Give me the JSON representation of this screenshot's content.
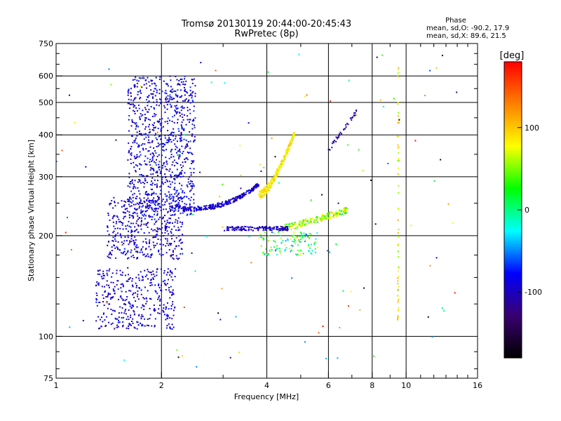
{
  "chart_data": {
    "type": "scatter",
    "title": "Tromsø 20130119 20:44:00-20:45:43",
    "subtitle": "RwPretec (8p)",
    "xlabel": "Frequency [MHz]",
    "ylabel": "Stationary phase Virtual Height [km]",
    "x_scale": "log",
    "y_scale": "log",
    "xlim": [
      1,
      16
    ],
    "ylim": [
      75,
      750
    ],
    "x_ticks": [
      1,
      2,
      4,
      6,
      8,
      10,
      16
    ],
    "x_tick_labels": [
      "1",
      "2",
      "4",
      "6",
      "8",
      "10",
      "16"
    ],
    "y_ticks": [
      75,
      100,
      200,
      300,
      400,
      500,
      600,
      750
    ],
    "y_tick_labels": [
      "75",
      "100",
      "200",
      "300",
      "400",
      "500",
      "600",
      "750"
    ],
    "x_gridlines": [
      2,
      4,
      6,
      8,
      10
    ],
    "y_gridlines": [
      100,
      200,
      300,
      400,
      500,
      600
    ],
    "grid": true,
    "stats": {
      "heading": "Phase",
      "line_o": "mean, sd,O: -90.2, 17.9",
      "line_x": "mean, sd,X:  89.6, 21.5"
    },
    "colorbar": {
      "label": "[deg]",
      "range": [
        -180,
        180
      ],
      "ticks": [
        100,
        0,
        -100
      ],
      "tick_labels": [
        "100",
        "0",
        "-100"
      ],
      "colors": [
        "#000000",
        "#3a0070",
        "#0000ff",
        "#00ffff",
        "#00ff00",
        "#ffff00",
        "#ff8000",
        "#ff0000"
      ]
    },
    "clusters": [
      {
        "name": "E-region echoes",
        "f": [
          1.3,
          2.2
        ],
        "h": [
          105,
          160
        ],
        "phase": -95
      },
      {
        "name": "F low blob",
        "f": [
          1.4,
          2.3
        ],
        "h": [
          170,
          260
        ],
        "phase": -95
      },
      {
        "name": "F high blob",
        "f": [
          1.6,
          2.5
        ],
        "h": [
          230,
          600
        ],
        "phase": -90
      },
      {
        "name": "O trace",
        "f": [
          2.3,
          3.8
        ],
        "h": [
          235,
          280
        ],
        "phase": -95
      },
      {
        "name": "X trace",
        "f": [
          3.8,
          4.8
        ],
        "h": [
          260,
          420
        ],
        "phase": 90
      },
      {
        "name": "F2 second branch",
        "f": [
          4.4,
          6.6
        ],
        "h": [
          210,
          240
        ],
        "phase": 70
      },
      {
        "name": "Es band",
        "f": [
          3.0,
          4.5
        ],
        "h": [
          208,
          216
        ],
        "phase": -100
      }
    ]
  }
}
